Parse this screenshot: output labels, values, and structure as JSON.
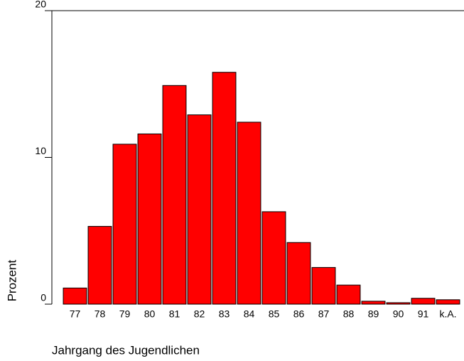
{
  "chart_data": {
    "type": "bar",
    "categories": [
      "77",
      "78",
      "79",
      "80",
      "81",
      "82",
      "83",
      "84",
      "85",
      "86",
      "87",
      "88",
      "89",
      "90",
      "91",
      "k.A."
    ],
    "values": [
      1.1,
      5.3,
      10.9,
      11.6,
      14.9,
      12.9,
      15.8,
      12.4,
      6.3,
      4.2,
      2.5,
      1.3,
      0.2,
      0.1,
      0.4,
      0.3
    ],
    "color": "#ff0000",
    "ylim": [
      0,
      20
    ],
    "yticks": [
      0,
      10,
      20
    ],
    "xlabel": "Jahrgang des Jugendlichen",
    "ylabel": "Prozent"
  }
}
